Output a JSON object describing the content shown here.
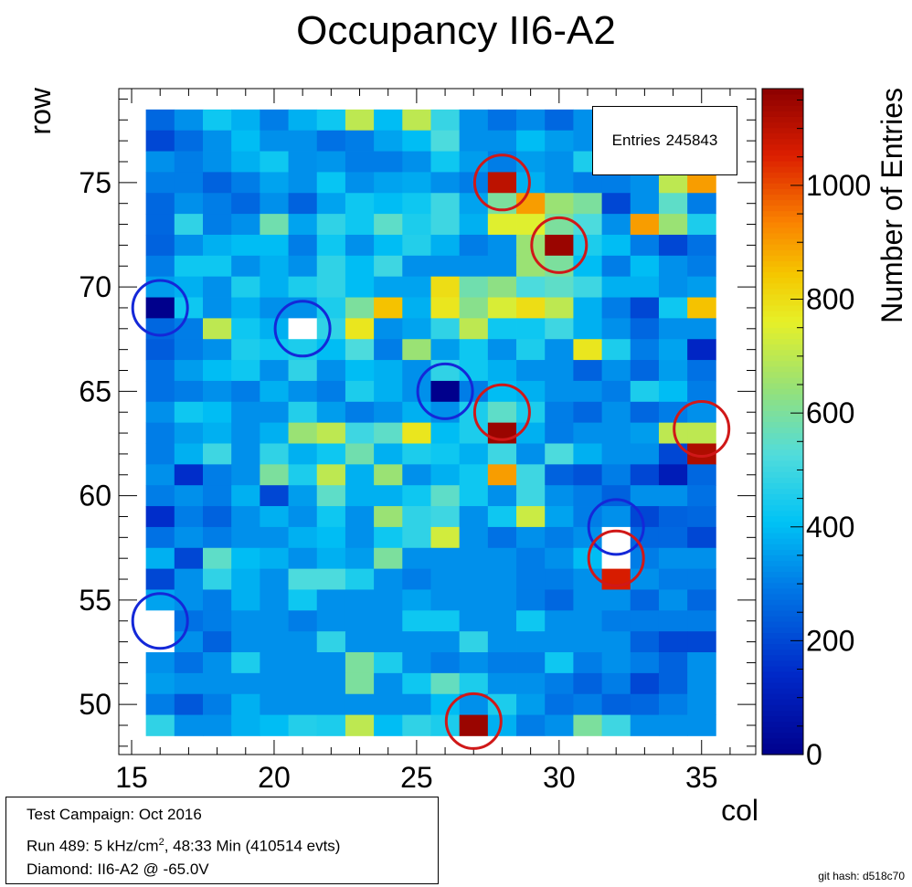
{
  "chart_data": {
    "type": "heatmap",
    "title": "Occupancy II6-A2",
    "xlabel": "col",
    "ylabel": "row",
    "zlabel": "Number of Entries",
    "xlim": [
      15.5,
      35.5
    ],
    "ylim": [
      48.5,
      78.5
    ],
    "zlim": [
      0,
      1170
    ],
    "x_ticks": [
      15,
      20,
      25,
      30,
      35
    ],
    "y_ticks": [
      50,
      55,
      60,
      65,
      70,
      75
    ],
    "z_ticks": [
      0,
      200,
      400,
      600,
      800,
      1000
    ],
    "colormap": "rainbow (blue-cyan-yellow-red)",
    "cols": [
      16,
      17,
      18,
      19,
      20,
      21,
      22,
      23,
      24,
      25,
      26,
      27,
      28,
      29,
      30,
      31,
      32,
      33,
      34,
      35
    ],
    "rows": [
      49,
      50,
      51,
      52,
      53,
      54,
      55,
      56,
      57,
      58,
      59,
      60,
      61,
      62,
      63,
      64,
      65,
      66,
      67,
      68,
      69,
      70,
      71,
      72,
      73,
      74,
      75,
      76,
      77,
      78
    ],
    "values_by_row_top_to_bottom": [
      [
        260,
        330,
        430,
        380,
        300,
        380,
        430,
        700,
        400,
        700,
        490,
        330,
        280,
        320,
        260,
        330,
        330,
        350,
        300,
        280
      ],
      [
        200,
        270,
        330,
        400,
        330,
        330,
        280,
        300,
        360,
        400,
        520,
        330,
        330,
        400,
        350,
        330,
        330,
        300,
        250,
        250
      ],
      [
        330,
        300,
        330,
        380,
        430,
        330,
        340,
        300,
        300,
        330,
        430,
        350,
        300,
        350,
        330,
        450,
        450,
        330,
        330,
        350
      ],
      [
        300,
        300,
        250,
        300,
        360,
        330,
        420,
        330,
        360,
        370,
        330,
        300,
        1100,
        380,
        330,
        300,
        300,
        330,
        700,
        900
      ],
      [
        260,
        330,
        300,
        260,
        330,
        250,
        360,
        430,
        400,
        430,
        500,
        360,
        600,
        900,
        650,
        600,
        200,
        330,
        550,
        300
      ],
      [
        260,
        480,
        300,
        330,
        580,
        360,
        480,
        430,
        550,
        450,
        500,
        380,
        750,
        750,
        600,
        520,
        330,
        900,
        650,
        450
      ],
      [
        250,
        330,
        380,
        400,
        400,
        300,
        430,
        330,
        400,
        460,
        380,
        300,
        330,
        650,
        1150,
        450,
        400,
        300,
        200,
        280
      ],
      [
        300,
        430,
        430,
        330,
        380,
        330,
        480,
        400,
        500,
        330,
        330,
        330,
        330,
        650,
        600,
        400,
        300,
        400,
        330,
        300
      ],
      [
        350,
        380,
        330,
        450,
        380,
        450,
        480,
        400,
        360,
        360,
        800,
        580,
        630,
        520,
        550,
        500,
        380,
        380,
        330,
        350
      ],
      [
        0,
        430,
        330,
        380,
        330,
        330,
        450,
        600,
        850,
        380,
        780,
        620,
        740,
        800,
        700,
        380,
        300,
        200,
        430,
        850
      ],
      [
        260,
        300,
        700,
        430,
        380,
        1170,
        480,
        780,
        330,
        360,
        480,
        700,
        430,
        430,
        500,
        380,
        330,
        260,
        330,
        330
      ],
      [
        240,
        300,
        330,
        450,
        430,
        450,
        400,
        520,
        300,
        650,
        350,
        430,
        330,
        450,
        330,
        780,
        450,
        300,
        360,
        130
      ],
      [
        280,
        350,
        400,
        430,
        330,
        480,
        330,
        400,
        380,
        330,
        480,
        430,
        380,
        330,
        330,
        250,
        330,
        260,
        350,
        280
      ],
      [
        280,
        300,
        330,
        300,
        380,
        330,
        300,
        450,
        380,
        330,
        0,
        300,
        400,
        380,
        330,
        330,
        300,
        450,
        400,
        300
      ],
      [
        330,
        430,
        400,
        330,
        330,
        460,
        350,
        300,
        330,
        380,
        330,
        450,
        550,
        450,
        300,
        260,
        330,
        260,
        300,
        330
      ],
      [
        300,
        350,
        380,
        330,
        380,
        650,
        700,
        500,
        550,
        780,
        400,
        450,
        1150,
        380,
        300,
        330,
        330,
        350,
        700,
        700
      ],
      [
        300,
        380,
        500,
        330,
        480,
        380,
        430,
        580,
        380,
        450,
        430,
        380,
        500,
        330,
        520,
        380,
        330,
        330,
        200,
        1120
      ],
      [
        330,
        150,
        300,
        330,
        600,
        450,
        700,
        380,
        650,
        330,
        380,
        430,
        900,
        500,
        250,
        220,
        300,
        200,
        100,
        260
      ],
      [
        300,
        330,
        300,
        380,
        200,
        350,
        550,
        380,
        380,
        430,
        550,
        430,
        330,
        500,
        330,
        300,
        250,
        330,
        330,
        280
      ],
      [
        150,
        300,
        250,
        330,
        380,
        330,
        430,
        330,
        650,
        480,
        500,
        330,
        430,
        720,
        360,
        300,
        330,
        200,
        250,
        260
      ],
      [
        280,
        330,
        300,
        330,
        330,
        380,
        400,
        330,
        430,
        480,
        730,
        330,
        280,
        330,
        300,
        330,
        1170,
        260,
        260,
        200
      ],
      [
        380,
        200,
        550,
        400,
        380,
        330,
        380,
        350,
        600,
        330,
        330,
        330,
        330,
        300,
        330,
        400,
        1170,
        300,
        330,
        330
      ],
      [
        200,
        330,
        480,
        380,
        330,
        520,
        520,
        450,
        330,
        300,
        330,
        330,
        330,
        300,
        300,
        330,
        1060,
        330,
        300,
        300
      ],
      [
        360,
        330,
        300,
        380,
        330,
        430,
        330,
        330,
        330,
        360,
        330,
        330,
        330,
        300,
        260,
        330,
        330,
        260,
        330,
        260
      ],
      [
        1170,
        280,
        300,
        330,
        330,
        300,
        330,
        330,
        330,
        430,
        430,
        330,
        330,
        430,
        330,
        330,
        300,
        300,
        300,
        300
      ],
      [
        1170,
        330,
        250,
        330,
        330,
        330,
        480,
        330,
        330,
        330,
        330,
        480,
        330,
        330,
        330,
        330,
        330,
        250,
        200,
        200
      ],
      [
        330,
        280,
        330,
        450,
        330,
        330,
        330,
        600,
        450,
        330,
        300,
        330,
        300,
        300,
        430,
        300,
        330,
        300,
        250,
        330
      ],
      [
        350,
        330,
        330,
        330,
        330,
        330,
        330,
        600,
        330,
        430,
        560,
        450,
        330,
        330,
        300,
        250,
        300,
        200,
        250,
        330
      ],
      [
        300,
        230,
        300,
        380,
        330,
        330,
        330,
        330,
        330,
        330,
        400,
        330,
        450,
        350,
        280,
        300,
        250,
        260,
        300,
        330
      ],
      [
        480,
        330,
        330,
        380,
        400,
        460,
        450,
        700,
        400,
        480,
        450,
        1150,
        380,
        300,
        330,
        600,
        500,
        330,
        330,
        330
      ]
    ],
    "markers": [
      {
        "col": 16,
        "row": 69,
        "color": "blue"
      },
      {
        "col": 21,
        "row": 68,
        "color": "blue"
      },
      {
        "col": 26,
        "row": 65,
        "color": "blue"
      },
      {
        "col": 32,
        "row": 58.5,
        "color": "blue"
      },
      {
        "col": 16,
        "row": 54,
        "color": "blue"
      },
      {
        "col": 28,
        "row": 75,
        "color": "red"
      },
      {
        "col": 30,
        "row": 72,
        "color": "red"
      },
      {
        "col": 28,
        "row": 64,
        "color": "red"
      },
      {
        "col": 35,
        "row": 63.2,
        "color": "red"
      },
      {
        "col": 32,
        "row": 57,
        "color": "red"
      },
      {
        "col": 27,
        "row": 49.2,
        "color": "red"
      }
    ]
  },
  "stats": {
    "label": "Entries",
    "value": "245843"
  },
  "info": {
    "line1": "Test Campaign: Oct 2016",
    "line2_prefix": "Run 489:   5 kHz/cm",
    "line2_sup": "2",
    "line2_suffix": ", 48:33 Min (410514 evts)",
    "line3": "Diamond: II6-A2 @ -65.0V"
  },
  "git_hash": "git hash: d518c70"
}
